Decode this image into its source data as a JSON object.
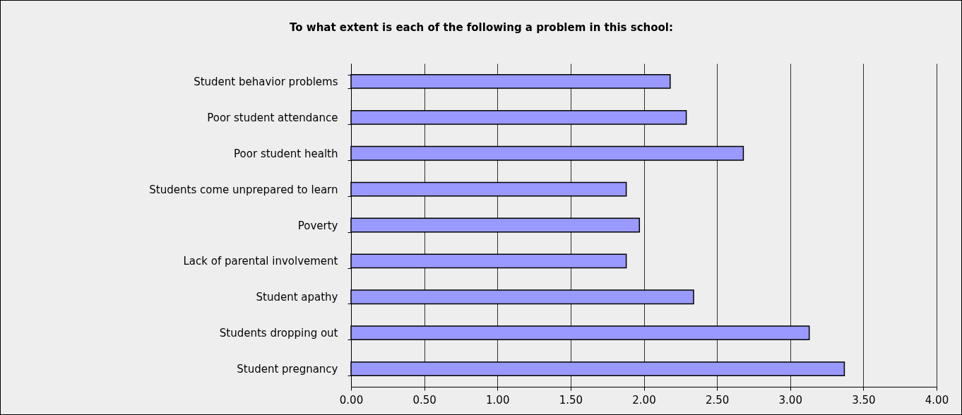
{
  "chart_data": {
    "type": "bar",
    "orientation": "horizontal",
    "title": "To what extent is each of the following a problem in this school:",
    "categories": [
      "Student behavior problems",
      "Poor student attendance",
      "Poor student health",
      "Students come unprepared to learn",
      "Poverty",
      "Lack of parental involvement",
      "Student apathy",
      "Students dropping out",
      "Student pregnancy"
    ],
    "values": [
      2.18,
      2.29,
      2.68,
      1.88,
      1.97,
      1.88,
      2.34,
      3.13,
      3.37
    ],
    "color": "#9999ff",
    "xlim": [
      0,
      4
    ],
    "xticks": [
      {
        "value": 0,
        "label": "0.00"
      },
      {
        "value": 0.5,
        "label": "0.50"
      },
      {
        "value": 1,
        "label": "1.00"
      },
      {
        "value": 1.5,
        "label": "1.50"
      },
      {
        "value": 2,
        "label": "2.00"
      },
      {
        "value": 2.5,
        "label": "2.50"
      },
      {
        "value": 3,
        "label": "3.00"
      },
      {
        "value": 3.5,
        "label": "3.50"
      },
      {
        "value": 4,
        "label": "4.00"
      }
    ],
    "grid": "x"
  }
}
